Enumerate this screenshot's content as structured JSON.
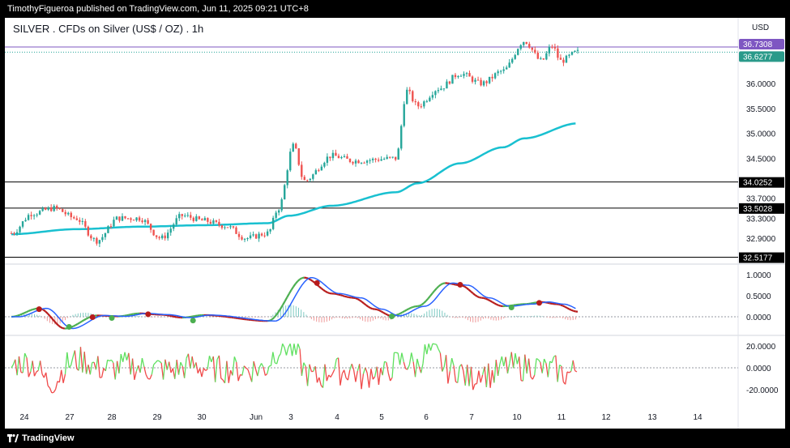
{
  "header": {
    "publisher_text": "TimothyFigueroa published on TradingView.com, Jun 11, 2025 09:21 UTC+8"
  },
  "chart": {
    "title": "SILVER . CFDs on Silver (US$ / OZ) . 1h",
    "currency": "USD"
  },
  "footer": {
    "brand": "TradingView"
  },
  "colors": {
    "up": "#26a69a",
    "down": "#ef5350",
    "ma": "#19c0d0",
    "purple_line": "#7e57c2",
    "price_badge": "#2a9a8a",
    "osc_green": "#4caf50",
    "osc_red": "#b71c1c",
    "osc_blue": "#2962ff",
    "lower_green": "#5fe05f",
    "lower_red": "#f04a4a"
  },
  "chart_data": {
    "type": "candlestick",
    "time_labels": [
      "24",
      "27",
      "28",
      "29",
      "30",
      "Jun",
      "3",
      "4",
      "5",
      "6",
      "7",
      "10",
      "11",
      "12",
      "13",
      "14"
    ],
    "price_axis": {
      "labels": [
        "36.0000",
        "35.5000",
        "35.0000",
        "34.5000",
        "33.7000",
        "33.3000",
        "32.9000"
      ],
      "ylim": [
        32.4,
        37.0
      ]
    },
    "horizontal_levels": [
      {
        "value": 34.0252,
        "label": "34.0252"
      },
      {
        "value": 33.5028,
        "label": "33.5028"
      },
      {
        "value": 32.5177,
        "label": "32.5177"
      }
    ],
    "price_badges": [
      {
        "value": 36.7308,
        "label": "36.7308",
        "kind": "purple"
      },
      {
        "value": 36.6277,
        "label": "36.6277",
        "kind": "current"
      }
    ],
    "price_path_anchors": [
      {
        "t": 0,
        "p": 33.0
      },
      {
        "t": 1,
        "p": 33.4
      },
      {
        "t": 2,
        "p": 33.5
      },
      {
        "t": 3,
        "p": 33.3
      },
      {
        "t": 4,
        "p": 32.85
      },
      {
        "t": 5,
        "p": 33.3
      },
      {
        "t": 6,
        "p": 33.3
      },
      {
        "t": 7,
        "p": 32.9
      },
      {
        "t": 8,
        "p": 33.35
      },
      {
        "t": 9,
        "p": 33.25
      },
      {
        "t": 10,
        "p": 33.15
      },
      {
        "t": 11,
        "p": 32.9
      },
      {
        "t": 12,
        "p": 33.0
      },
      {
        "t": 12.5,
        "p": 33.5
      },
      {
        "t": 13.2,
        "p": 34.75
      },
      {
        "t": 13.7,
        "p": 34.05
      },
      {
        "t": 15,
        "p": 34.55
      },
      {
        "t": 16,
        "p": 34.45
      },
      {
        "t": 18.0,
        "p": 34.5
      },
      {
        "t": 18.5,
        "p": 35.85
      },
      {
        "t": 19,
        "p": 35.55
      },
      {
        "t": 20,
        "p": 35.9
      },
      {
        "t": 21,
        "p": 36.2
      },
      {
        "t": 22,
        "p": 36.0
      },
      {
        "t": 23,
        "p": 36.25
      },
      {
        "t": 24,
        "p": 36.85
      },
      {
        "t": 24.8,
        "p": 36.45
      },
      {
        "t": 25.3,
        "p": 36.75
      },
      {
        "t": 25.7,
        "p": 36.45
      },
      {
        "t": 26.5,
        "p": 36.63
      }
    ],
    "moving_average_anchors": [
      {
        "t": 0,
        "p": 32.98
      },
      {
        "t": 3,
        "p": 33.08
      },
      {
        "t": 6,
        "p": 33.13
      },
      {
        "t": 9,
        "p": 33.16
      },
      {
        "t": 12,
        "p": 33.2
      },
      {
        "t": 13,
        "p": 33.35
      },
      {
        "t": 15,
        "p": 33.55
      },
      {
        "t": 18,
        "p": 33.82
      },
      {
        "t": 19,
        "p": 34.0
      },
      {
        "t": 21,
        "p": 34.4
      },
      {
        "t": 23,
        "p": 34.72
      },
      {
        "t": 24,
        "p": 34.9
      },
      {
        "t": 26.5,
        "p": 35.2
      }
    ],
    "oscillator": {
      "axis_labels": [
        "1.0000",
        "0.5000",
        "0.0000"
      ],
      "ylim": [
        -0.32,
        1.12
      ],
      "line1_anchors": [
        {
          "t": 0,
          "v": 0
        },
        {
          "t": 1.3,
          "v": 0.2
        },
        {
          "t": 2.5,
          "v": -0.28
        },
        {
          "t": 4,
          "v": 0.03
        },
        {
          "t": 5,
          "v": 0.01
        },
        {
          "t": 6,
          "v": 0.08
        },
        {
          "t": 7,
          "v": 0.05
        },
        {
          "t": 8,
          "v": -0.02
        },
        {
          "t": 9,
          "v": 0.04
        },
        {
          "t": 12,
          "v": -0.1
        },
        {
          "t": 13.7,
          "v": 0.93
        },
        {
          "t": 15,
          "v": 0.55
        },
        {
          "t": 16,
          "v": 0.45
        },
        {
          "t": 17,
          "v": 0.18
        },
        {
          "t": 17.8,
          "v": 0.02
        },
        {
          "t": 19,
          "v": 0.25
        },
        {
          "t": 20.3,
          "v": 0.8
        },
        {
          "t": 21,
          "v": 0.75
        },
        {
          "t": 22,
          "v": 0.45
        },
        {
          "t": 23,
          "v": 0.25
        },
        {
          "t": 24,
          "v": 0.3
        },
        {
          "t": 24.8,
          "v": 0.35
        },
        {
          "t": 25.5,
          "v": 0.3
        },
        {
          "t": 26.5,
          "v": 0.12
        }
      ],
      "cross_markers": [
        {
          "t": 1.3,
          "v": 0.18,
          "kind": "bear"
        },
        {
          "t": 2.7,
          "v": -0.24,
          "kind": "bull"
        },
        {
          "t": 3.8,
          "v": -0.01,
          "kind": "bear"
        },
        {
          "t": 4.7,
          "v": -0.03,
          "kind": "bull"
        },
        {
          "t": 6.4,
          "v": 0.06,
          "kind": "bear"
        },
        {
          "t": 8.5,
          "v": -0.09,
          "kind": "bull"
        },
        {
          "t": 14.3,
          "v": 0.8,
          "kind": "bear"
        },
        {
          "t": 17.8,
          "v": 0.01,
          "kind": "bull"
        },
        {
          "t": 21.0,
          "v": 0.76,
          "kind": "bear"
        },
        {
          "t": 23.4,
          "v": 0.22,
          "kind": "bull"
        },
        {
          "t": 24.7,
          "v": 0.33,
          "kind": "bear"
        }
      ]
    },
    "lower_indicator": {
      "axis_labels": [
        "20.0000",
        "0.0000",
        "-20.0000"
      ],
      "ylim": [
        -30,
        32
      ]
    }
  }
}
